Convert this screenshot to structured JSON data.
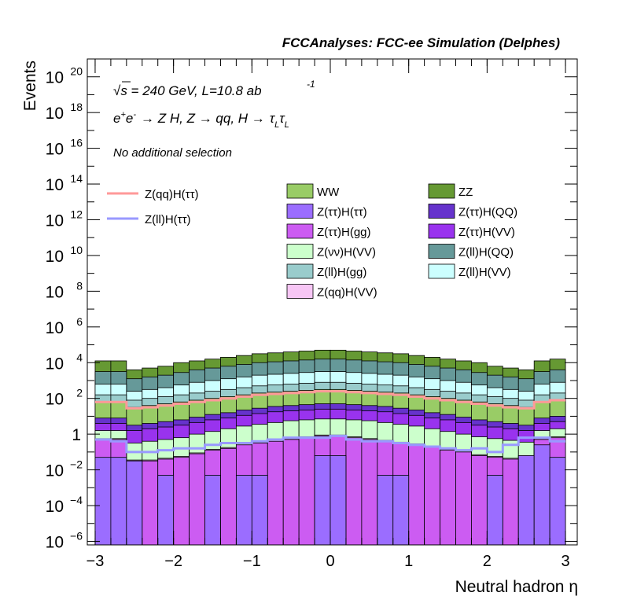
{
  "chart_data": {
    "type": "bar",
    "subtype": "stacked-histogram",
    "header": "FCCAnalyses: FCC-ee Simulation (Delphes)",
    "annotations": {
      "energy_line": "√s = 240 GeV, L=10.8 ab",
      "lumi_exponent": "-1",
      "process_prefix": "e",
      "process_e_plus": "+",
      "process_e_minus": "-",
      "process_main": "→ Z H, Z  → qq, H  →",
      "process_tau": "τ",
      "process_sub": "L",
      "selection": "No additional selection"
    },
    "xlabel": "Neutral hadron η",
    "ylabel": "Events",
    "xlim": [
      -3.1,
      3.15
    ],
    "ylim_log10": [
      -6.2,
      21.0
    ],
    "yscale": "log",
    "xticks": [
      -3,
      -2,
      -1,
      0,
      1,
      2,
      3
    ],
    "xtick_labels": [
      "−3",
      "−2",
      "−1",
      "0",
      "1",
      "2",
      "3"
    ],
    "yticks_log10": [
      -6,
      -4,
      -2,
      0,
      2,
      4,
      6,
      8,
      10,
      12,
      14,
      16,
      18,
      20
    ],
    "ytick_labels": [
      {
        "base": "10",
        "exp": "−6"
      },
      {
        "base": "10",
        "exp": "−4"
      },
      {
        "base": "10",
        "exp": "−2"
      },
      {
        "base": "1",
        "exp": ""
      },
      {
        "base": "10",
        "exp": "2"
      },
      {
        "base": "10",
        "exp": "4"
      },
      {
        "base": "10",
        "exp": "6"
      },
      {
        "base": "10",
        "exp": "8"
      },
      {
        "base": "10",
        "exp": "10"
      },
      {
        "base": "10",
        "exp": "12"
      },
      {
        "base": "10",
        "exp": "14"
      },
      {
        "base": "10",
        "exp": "16"
      },
      {
        "base": "10",
        "exp": "18"
      },
      {
        "base": "10",
        "exp": "20"
      }
    ],
    "bin_edges": [
      -3.0,
      -2.8,
      -2.6,
      -2.4,
      -2.2,
      -2.0,
      -1.8,
      -1.6,
      -1.4,
      -1.2,
      -1.0,
      -0.8,
      -0.6,
      -0.4,
      -0.2,
      0.0,
      0.2,
      0.4,
      0.6,
      0.8,
      1.0,
      1.2,
      1.4,
      1.6,
      1.8,
      2.0,
      2.2,
      2.4,
      2.6,
      2.8,
      3.0
    ],
    "stack_order_bottom_to_top": [
      "Z(ττ)H(ττ)",
      "Z(ττ)H(gg)",
      "Z(qq)H(VV)",
      "Z(νν)H(VV)",
      "Z(ττ)H(VV)",
      "Z(ττ)H(QQ)",
      "WW",
      "Z(ll)H(gg)",
      "Z(ll)H(VV)",
      "Z(ll)H(QQ)",
      "ZZ"
    ],
    "stack_tops_log10": [
      {
        "name": "Z(ττ)H(ττ)",
        "color": "#9b6dff",
        "values": [
          -1.3,
          -1.3,
          -1.5,
          -6.2,
          -2.3,
          -6.2,
          -6.2,
          -2.3,
          -6.2,
          -2.3,
          -2.3,
          -6.2,
          -6.2,
          -6.2,
          -1.2,
          -1.2,
          -6.2,
          -6.2,
          -2.3,
          -2.3,
          -6.2,
          -6.2,
          -6.2,
          -6.2,
          -6.2,
          -2.3,
          -6.2,
          -1.2,
          -0.6,
          -1.3
        ]
      },
      {
        "name": "Z(ττ)H(gg)",
        "color": "#cc5cf2",
        "values": [
          -0.3,
          -0.3,
          -1.5,
          -1.5,
          -1.4,
          -1.3,
          -1.1,
          -0.9,
          -0.8,
          -0.6,
          -0.5,
          -0.4,
          -0.3,
          -0.2,
          -0.1,
          -0.1,
          -0.2,
          -0.3,
          -0.4,
          -0.5,
          -0.6,
          -0.7,
          -0.9,
          -1.0,
          -1.2,
          -1.3,
          -1.4,
          -1.5,
          -0.3,
          -0.2
        ]
      },
      {
        "name": "Z(qq)H(VV)",
        "color": "#f7c6f5",
        "values": [
          -0.25,
          -0.25,
          -1.45,
          -1.45,
          -1.35,
          -1.25,
          -1.05,
          -0.85,
          -0.75,
          -0.55,
          -0.45,
          -0.35,
          -0.25,
          -0.15,
          -0.05,
          -0.05,
          -0.15,
          -0.25,
          -0.35,
          -0.45,
          -0.55,
          -0.65,
          -0.85,
          -0.95,
          -1.15,
          -1.25,
          -1.35,
          -1.45,
          -0.25,
          -0.15
        ]
      },
      {
        "name": "Z(νν)H(VV)",
        "color": "#ccffcc",
        "values": [
          0.2,
          0.2,
          -0.5,
          -0.4,
          -0.3,
          -0.2,
          0.0,
          0.15,
          0.3,
          0.45,
          0.55,
          0.65,
          0.75,
          0.8,
          0.85,
          0.85,
          0.8,
          0.75,
          0.65,
          0.55,
          0.45,
          0.3,
          0.15,
          0.0,
          -0.15,
          -0.25,
          -0.35,
          -0.45,
          0.2,
          0.3
        ]
      },
      {
        "name": "Z(ττ)H(VV)",
        "color": "#9933ee",
        "values": [
          0.6,
          0.6,
          0.2,
          0.3,
          0.4,
          0.5,
          0.65,
          0.8,
          0.9,
          1.05,
          1.15,
          1.25,
          1.3,
          1.35,
          1.4,
          1.4,
          1.35,
          1.3,
          1.25,
          1.15,
          1.05,
          0.9,
          0.8,
          0.65,
          0.5,
          0.4,
          0.3,
          0.2,
          0.6,
          0.7
        ]
      },
      {
        "name": "Z(ττ)H(QQ)",
        "color": "#6633cc",
        "values": [
          0.9,
          0.9,
          0.5,
          0.6,
          0.7,
          0.8,
          0.95,
          1.1,
          1.2,
          1.35,
          1.45,
          1.55,
          1.6,
          1.65,
          1.7,
          1.7,
          1.65,
          1.6,
          1.55,
          1.45,
          1.35,
          1.2,
          1.1,
          0.95,
          0.8,
          0.7,
          0.6,
          0.5,
          0.9,
          1.0
        ]
      },
      {
        "name": "WW",
        "color": "#99cc66",
        "values": [
          1.8,
          1.8,
          1.5,
          1.6,
          1.7,
          1.8,
          1.9,
          2.0,
          2.1,
          2.2,
          2.3,
          2.35,
          2.4,
          2.45,
          2.5,
          2.5,
          2.45,
          2.4,
          2.35,
          2.3,
          2.2,
          2.1,
          2.0,
          1.9,
          1.8,
          1.7,
          1.6,
          1.5,
          1.8,
          1.9
        ]
      },
      {
        "name": "Z(ll)H(gg)",
        "color": "#99cccc",
        "values": [
          2.2,
          2.2,
          1.9,
          2.0,
          2.1,
          2.2,
          2.3,
          2.4,
          2.5,
          2.6,
          2.7,
          2.75,
          2.8,
          2.85,
          2.9,
          2.9,
          2.85,
          2.8,
          2.75,
          2.7,
          2.6,
          2.5,
          2.4,
          2.3,
          2.2,
          2.1,
          2.0,
          1.9,
          2.2,
          2.3
        ]
      },
      {
        "name": "Z(ll)H(VV)",
        "color": "#ccffff",
        "values": [
          2.8,
          2.8,
          2.4,
          2.5,
          2.6,
          2.75,
          2.9,
          3.0,
          3.1,
          3.2,
          3.3,
          3.35,
          3.4,
          3.45,
          3.5,
          3.5,
          3.45,
          3.4,
          3.35,
          3.3,
          3.2,
          3.1,
          3.0,
          2.9,
          2.75,
          2.6,
          2.5,
          2.4,
          2.8,
          2.9
        ]
      },
      {
        "name": "Z(ll)H(QQ)",
        "color": "#669999",
        "values": [
          3.5,
          3.5,
          3.1,
          3.2,
          3.3,
          3.45,
          3.6,
          3.7,
          3.8,
          3.9,
          4.0,
          4.05,
          4.1,
          4.15,
          4.2,
          4.2,
          4.15,
          4.1,
          4.05,
          4.0,
          3.9,
          3.8,
          3.7,
          3.6,
          3.45,
          3.3,
          3.2,
          3.1,
          3.5,
          3.6
        ]
      },
      {
        "name": "ZZ",
        "color": "#669933",
        "values": [
          4.1,
          4.1,
          3.6,
          3.7,
          3.8,
          4.0,
          4.1,
          4.2,
          4.3,
          4.4,
          4.5,
          4.55,
          4.6,
          4.65,
          4.7,
          4.7,
          4.65,
          4.6,
          4.55,
          4.5,
          4.4,
          4.3,
          4.2,
          4.1,
          4.0,
          3.8,
          3.7,
          3.6,
          4.1,
          4.2
        ]
      }
    ],
    "signal_lines_log10": [
      {
        "name": "Z(qq)H(ττ)",
        "color": "#ff9999",
        "values": [
          1.8,
          1.8,
          1.45,
          1.5,
          1.6,
          1.7,
          1.8,
          1.9,
          2.0,
          2.1,
          2.2,
          2.25,
          2.3,
          2.35,
          2.4,
          2.4,
          2.35,
          2.3,
          2.25,
          2.2,
          2.1,
          2.0,
          1.9,
          1.8,
          1.7,
          1.6,
          1.5,
          1.45,
          1.8,
          1.9
        ]
      },
      {
        "name": "Z(ll)H(ττ)",
        "color": "#9999ff",
        "values": [
          -0.3,
          -0.4,
          -1.0,
          -1.0,
          -0.9,
          -0.8,
          -0.8,
          -0.6,
          -0.5,
          -0.5,
          -0.4,
          -0.3,
          -0.2,
          -0.2,
          -0.2,
          -0.1,
          -0.3,
          -0.4,
          -0.4,
          -0.5,
          -0.6,
          -0.7,
          -0.8,
          -0.9,
          -0.8,
          -1.0,
          -0.6,
          -0.2,
          -0.2,
          -0.4
        ]
      }
    ],
    "legend_signals": [
      "Z(qq)H(ττ)",
      "Z(ll)H(ττ)"
    ],
    "legend_backgrounds": [
      [
        "WW",
        "ZZ"
      ],
      [
        "Z(ττ)H(ττ)",
        "Z(ττ)H(QQ)"
      ],
      [
        "Z(ττ)H(gg)",
        "Z(ττ)H(VV)"
      ],
      [
        "Z(νν)H(VV)",
        "Z(ll)H(QQ)"
      ],
      [
        "Z(ll)H(gg)",
        "Z(ll)H(VV)"
      ],
      [
        "Z(qq)H(VV)",
        ""
      ]
    ],
    "legend_colors": {
      "WW": "#99cc66",
      "ZZ": "#669933",
      "Z(ττ)H(ττ)": "#9b6dff",
      "Z(ττ)H(QQ)": "#6633cc",
      "Z(ττ)H(gg)": "#cc5cf2",
      "Z(ττ)H(VV)": "#9933ee",
      "Z(νν)H(VV)": "#ccffcc",
      "Z(ll)H(QQ)": "#669999",
      "Z(ll)H(gg)": "#99cccc",
      "Z(ll)H(VV)": "#ccffff",
      "Z(qq)H(VV)": "#f7c6f5",
      "Z(qq)H(ττ)": "#ff9999",
      "Z(ll)H(ττ)": "#9999ff"
    },
    "grid": false,
    "legend_position": "top"
  }
}
